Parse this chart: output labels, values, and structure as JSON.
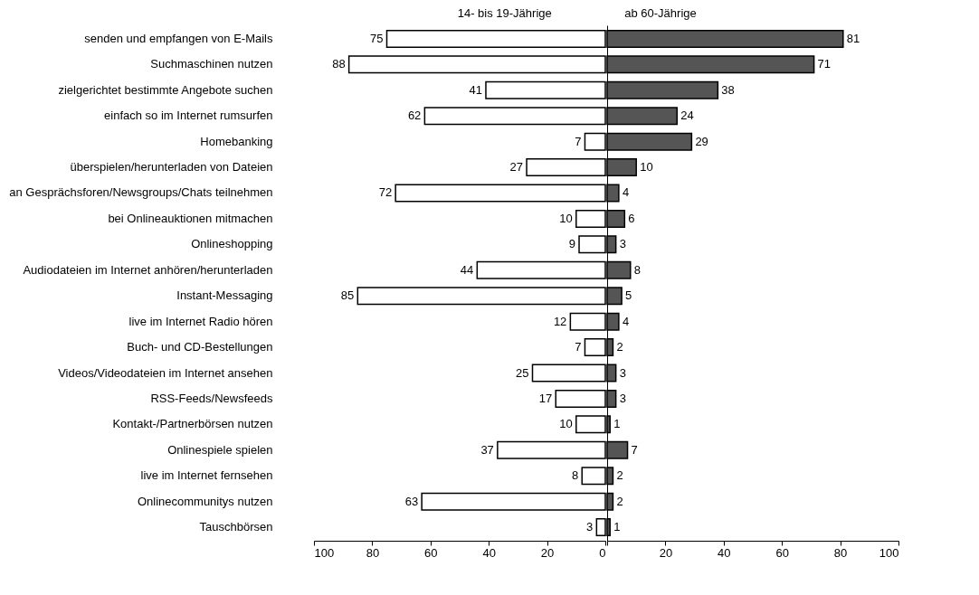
{
  "chart_data": [
    {
      "type": "bar",
      "orientation": "horizontal",
      "title": "14- bis 19-Jährige",
      "categories": [
        "senden und empfangen von E-Mails",
        "Suchmaschinen nutzen",
        "zielgerichtet bestimmte Angebote suchen",
        "einfach so im Internet rumsurfen",
        "Homebanking",
        "überspielen/herunterladen von Dateien",
        "an Gesprächsforen/Newsgroups/Chats teilnehmen",
        "bei Onlineauktionen mitmachen",
        "Onlineshopping",
        "Audiodateien im Internet anhören/herunterladen",
        "Instant-Messaging",
        "live im Internet Radio hören",
        "Buch- und CD-Bestellungen",
        "Videos/Videodateien im Internet ansehen",
        "RSS-Feeds/Newsfeeds",
        "Kontakt-/Partnerbörsen nutzen",
        "Onlinespiele spielen",
        "live im Internet fernsehen",
        "Onlinecommunitys nutzen",
        "Tauschbörsen"
      ],
      "series": [
        {
          "color": "#ffffff",
          "values": [
            75,
            88,
            41,
            62,
            7,
            27,
            72,
            10,
            9,
            44,
            85,
            12,
            7,
            25,
            17,
            10,
            37,
            8,
            63,
            3
          ]
        }
      ],
      "xlim": [
        100,
        0
      ],
      "xticks": [
        100,
        80,
        60,
        40,
        20,
        0
      ],
      "data_labels": true
    },
    {
      "type": "bar",
      "orientation": "horizontal",
      "title": "ab 60-Jährige",
      "categories": [
        null,
        null,
        null,
        null,
        null,
        null,
        null,
        null,
        null,
        null,
        null,
        null,
        null,
        null,
        null,
        null,
        null,
        null,
        null,
        null
      ],
      "series": [
        {
          "color": "#555555",
          "values": [
            81,
            71,
            38,
            24,
            29,
            10,
            4,
            6,
            3,
            8,
            5,
            4,
            2,
            3,
            3,
            1,
            7,
            2,
            2,
            1
          ]
        }
      ],
      "xlim": [
        0,
        100
      ],
      "xticks": [
        {
          "value": 0,
          "label": null
        },
        20,
        40,
        60,
        80,
        100
      ],
      "data_labels": true,
      "tick_labels": "x"
    }
  ]
}
